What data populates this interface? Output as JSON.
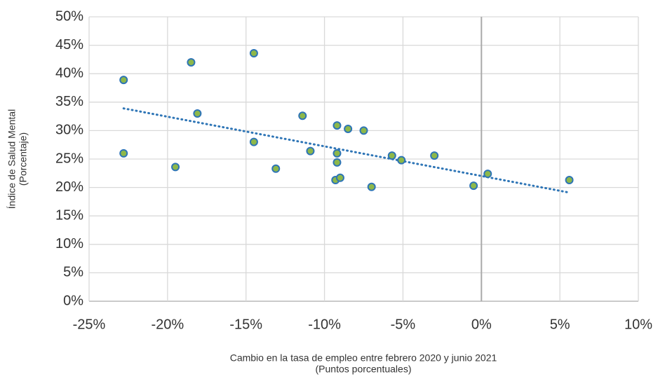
{
  "chart_data": {
    "type": "scatter",
    "x_label": [
      "Cambio en la tasa de empleo entre febrero 2020 y junio 2021",
      "(Puntos porcentuales)"
    ],
    "y_label": [
      "Índice de Salud Mental",
      "(Porcentaje)"
    ],
    "x": [
      -22.8,
      -22.8,
      -18.5,
      -18.1,
      -19.5,
      -14.5,
      -14.5,
      -13.1,
      -11.4,
      -10.9,
      -9.2,
      -8.5,
      -7.5,
      -9.2,
      -9.2,
      -9.3,
      -9.0,
      -7.0,
      -5.7,
      -5.1,
      -3.0,
      -0.5,
      0.4,
      5.6
    ],
    "values": [
      38.9,
      26.0,
      42.0,
      33.0,
      23.6,
      43.6,
      28.0,
      23.3,
      32.6,
      26.4,
      30.9,
      30.3,
      30.0,
      26.0,
      24.4,
      21.3,
      21.7,
      20.1,
      25.6,
      24.8,
      25.6,
      20.3,
      22.4,
      21.3
    ],
    "color": "#8db84a",
    "edge_color": "#2e75b6",
    "trendline": {
      "x": [
        -22.8,
        5.6
      ],
      "values": [
        33.9,
        19.1
      ],
      "color": "#2e75b6"
    },
    "xlim": [
      -25,
      10
    ],
    "xticks": [
      {
        "value": -25,
        "label": "-25%"
      },
      {
        "value": -20,
        "label": "-20%"
      },
      {
        "value": -15,
        "label": "-15%"
      },
      {
        "value": -10,
        "label": "-10%"
      },
      {
        "value": -5,
        "label": "-5%"
      },
      {
        "value": 0,
        "label": "0%"
      },
      {
        "value": 5,
        "label": "5%"
      },
      {
        "value": 10,
        "label": "10%"
      }
    ],
    "ylim": [
      0,
      50
    ],
    "yticks": [
      {
        "value": 0,
        "label": "0%"
      },
      {
        "value": 5,
        "label": "5%"
      },
      {
        "value": 10,
        "label": "10%"
      },
      {
        "value": 15,
        "label": "15%"
      },
      {
        "value": 20,
        "label": "20%"
      },
      {
        "value": 25,
        "label": "25%"
      },
      {
        "value": 30,
        "label": "30%"
      },
      {
        "value": 35,
        "label": "35%"
      },
      {
        "value": 40,
        "label": "40%"
      },
      {
        "value": 45,
        "label": "45%"
      },
      {
        "value": 50,
        "label": "50%"
      }
    ],
    "grid": true
  }
}
